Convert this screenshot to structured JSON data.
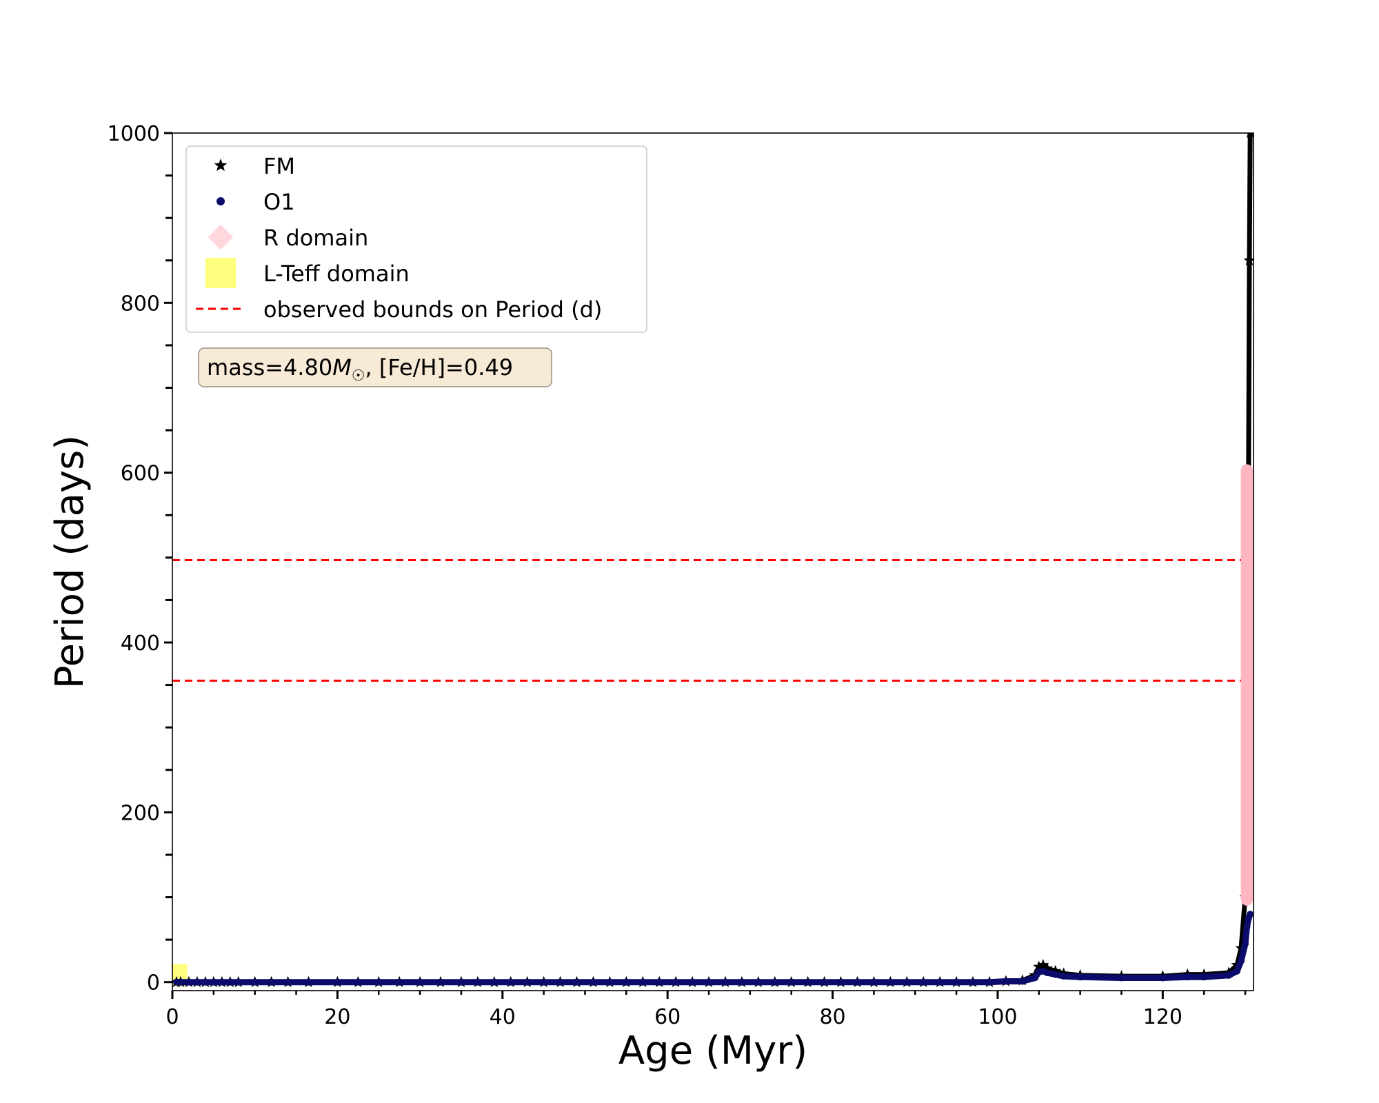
{
  "chart_data": {
    "type": "scatter",
    "title": "",
    "xlabel": "Age (Myr)",
    "ylabel": "Period (days)",
    "xlim": [
      0,
      131
    ],
    "ylim": [
      -10,
      1000
    ],
    "x_ticks": [
      0,
      20,
      40,
      60,
      80,
      100,
      120
    ],
    "y_ticks": [
      0,
      200,
      400,
      600,
      800,
      1000
    ],
    "grid": false,
    "legend_position": "top-left",
    "annotation": {
      "prefix": "mass=4.80",
      "mass_symbol": "M",
      "mass_subscript": "☉",
      "suffix": ", [Fe/H]=0.49"
    },
    "series": [
      {
        "name": "FM",
        "marker": "star",
        "color": "#000000",
        "x": [
          0.5,
          1,
          2,
          3,
          4,
          5,
          6,
          7,
          8,
          10,
          12,
          14,
          16.5,
          20,
          22.5,
          25,
          27.5,
          30,
          32.5,
          35,
          37,
          39,
          41,
          43,
          45,
          47,
          49,
          51,
          53,
          55,
          57,
          59,
          61,
          63,
          65,
          67,
          69,
          71,
          73,
          75,
          77,
          79,
          81,
          83,
          85,
          87,
          89,
          91,
          93,
          95,
          97,
          99,
          101,
          103,
          104.5,
          105,
          105.5,
          106,
          107,
          108,
          110,
          115,
          120,
          123,
          125,
          128,
          129,
          129.5,
          130,
          130.2,
          130.4,
          130.5,
          130.6
        ],
        "y": [
          0,
          0,
          0,
          0,
          0,
          0,
          0,
          0,
          0,
          0,
          0,
          0,
          0,
          0,
          0,
          0,
          0,
          0,
          0,
          0,
          0,
          0,
          0,
          0,
          0,
          0,
          0,
          0,
          0,
          0,
          0,
          0,
          0,
          0,
          0,
          0,
          0,
          0,
          0,
          0,
          0,
          0,
          0,
          0,
          0,
          0,
          0,
          0,
          0,
          0,
          0,
          0,
          1,
          2,
          8,
          18,
          20,
          16,
          13,
          10,
          8,
          7,
          7,
          9,
          9,
          11,
          20,
          40,
          100,
          300,
          600,
          850,
          1000
        ]
      },
      {
        "name": "O1",
        "marker": "circle",
        "color": "#0b0b6b",
        "x": [
          0.5,
          1,
          2,
          3,
          4,
          5,
          6,
          7,
          8,
          10,
          12,
          14,
          16.5,
          20,
          22.5,
          25,
          27.5,
          30,
          32.5,
          35,
          37,
          39,
          41,
          43,
          45,
          47,
          49,
          51,
          53,
          55,
          57,
          59,
          61,
          63,
          65,
          67,
          69,
          71,
          73,
          75,
          77,
          79,
          81,
          83,
          85,
          87,
          89,
          91,
          93,
          95,
          97,
          99,
          101,
          103,
          104.5,
          105,
          105.5,
          106,
          107,
          108,
          110,
          115,
          120,
          123,
          125,
          128,
          129,
          129.5,
          130,
          130.2,
          130.4,
          130.6
        ],
        "y": [
          0,
          0,
          0,
          0,
          0,
          0,
          0,
          0,
          0,
          0,
          0,
          0,
          0,
          0,
          0,
          0,
          0,
          0,
          0,
          0,
          0,
          0,
          0,
          0,
          0,
          0,
          0,
          0,
          0,
          0,
          0,
          0,
          0,
          0,
          0,
          0,
          0,
          0,
          0,
          0,
          0,
          0,
          0,
          0,
          0,
          0,
          0,
          0,
          0,
          0,
          0,
          0,
          1,
          1,
          5,
          12,
          13,
          11,
          9,
          7,
          6,
          5,
          5,
          6,
          6,
          8,
          13,
          25,
          45,
          65,
          75,
          80
        ]
      },
      {
        "name": "R domain",
        "marker": "diamond",
        "color": "#ffb6c1",
        "x_range": [
          129.8,
          130.6
        ],
        "y_range": [
          90,
          610
        ]
      },
      {
        "name": "L-Teff domain",
        "marker": "square",
        "color": "#ffff66",
        "x": [
          0.8
        ],
        "y": [
          5
        ]
      }
    ],
    "hlines": {
      "name": "observed bounds on Period (d)",
      "color": "#ff0000",
      "style": "dashed",
      "values": [
        355,
        497
      ]
    }
  }
}
